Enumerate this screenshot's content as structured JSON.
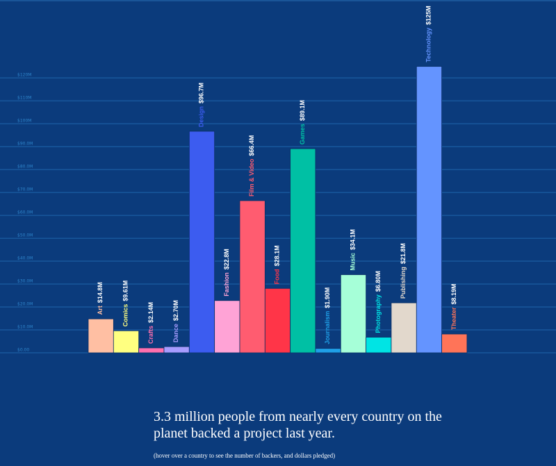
{
  "chart_data": {
    "type": "bar",
    "categories": [
      "Art",
      "Comics",
      "Crafts",
      "Dance",
      "Design",
      "Fashion",
      "Film & Video",
      "Food",
      "Games",
      "Journalism",
      "Music",
      "Photography",
      "Publishing",
      "Technology",
      "Theater"
    ],
    "values": [
      14.8,
      9.61,
      2.14,
      2.7,
      96.7,
      22.8,
      66.4,
      28.1,
      89.1,
      1.9,
      34.1,
      6.8,
      21.8,
      125,
      8.19
    ],
    "value_labels": [
      "$14.8M",
      "$9.61M",
      "$2.14M",
      "$2.70M",
      "$96.7M",
      "$22.8M",
      "$66.4M",
      "$28.1M",
      "$89.1M",
      "$1.90M",
      "$34.1M",
      "$6.80M",
      "$21.8M",
      "$125M",
      "$8.19M"
    ],
    "colors": [
      "#ffbfa3",
      "#ffff80",
      "#ff6fae",
      "#a79cff",
      "#3c5cf0",
      "#ffa3d6",
      "#ff5c70",
      "#ff3548",
      "#00c0a4",
      "#1fa0e8",
      "#a6ffd8",
      "#00e4e4",
      "#e2d8cc",
      "#6494ff",
      "#ff7458"
    ],
    "ylim": [
      0,
      154
    ],
    "yticks": [
      {
        "value": 0,
        "label": "$0.00"
      },
      {
        "value": 10,
        "label": "$10.0M"
      },
      {
        "value": 20,
        "label": "$20.0M"
      },
      {
        "value": 30,
        "label": "$30.0M"
      },
      {
        "value": 40,
        "label": "$40.0M"
      },
      {
        "value": 50,
        "label": "$50.0M"
      },
      {
        "value": 60,
        "label": "$60.0M"
      },
      {
        "value": 70,
        "label": "$70.0M"
      },
      {
        "value": 80,
        "label": "$80.0M"
      },
      {
        "value": 90,
        "label": "$90.0M"
      },
      {
        "value": 100,
        "label": "$100M"
      },
      {
        "value": 110,
        "label": "$110M"
      },
      {
        "value": 120,
        "label": "$120M"
      }
    ],
    "grid": true
  },
  "caption": "3.3 million people from nearly every country on the planet backed a project last year.",
  "note": "(hover over a country to see the number of backers, and dollars pledged)"
}
